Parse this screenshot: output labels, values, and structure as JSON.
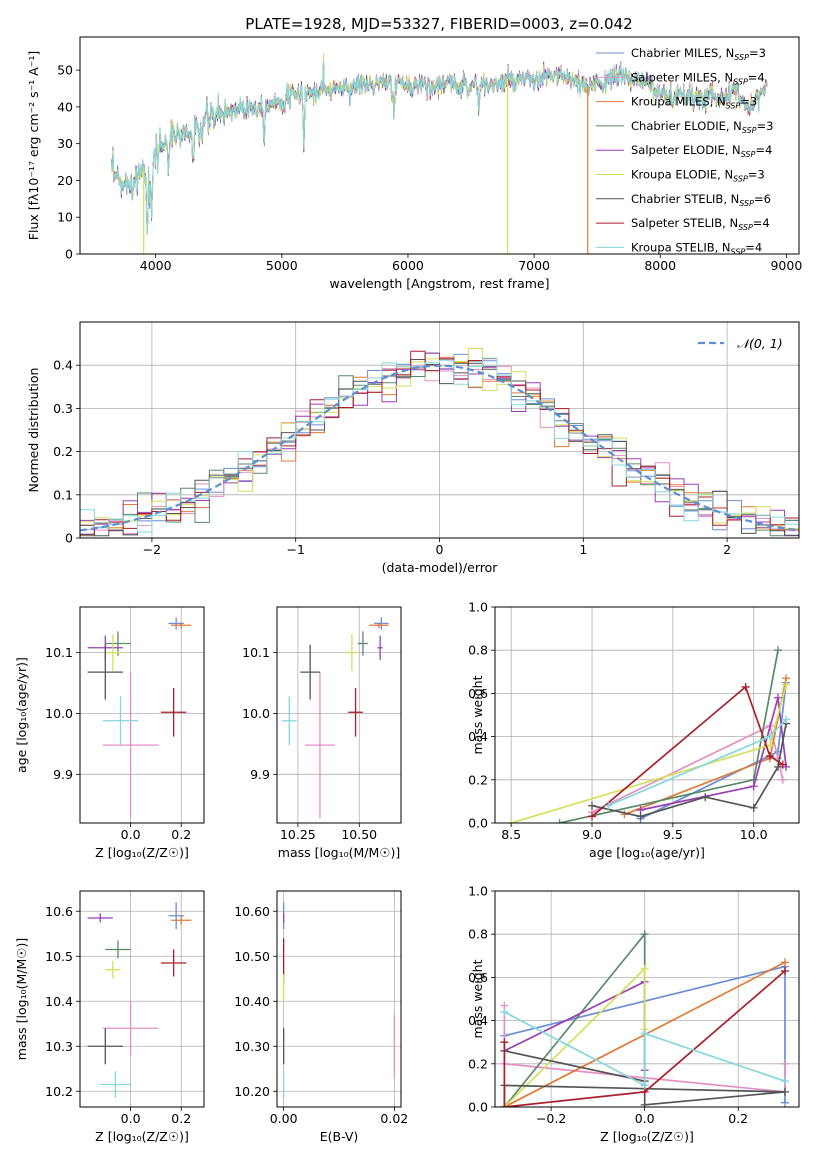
{
  "title": "PLATE=1928, MJD=53327, FIBERID=0003, z=0.042",
  "colors": {
    "chab_miles": "#6b8fd6",
    "salp_miles": "#e58fc5",
    "krou_miles": "#e07b39",
    "chab_elodie": "#5a8a6a",
    "salp_elodie": "#9b3fb5",
    "krou_elodie": "#d4e05a",
    "chab_stelib": "#555555",
    "salp_stelib": "#aa1f2a",
    "krou_stelib": "#86d7dd",
    "normal": "#5b8fd6"
  },
  "legend_top": [
    {
      "label": "Chabrier MILES, N",
      "sub": "SSP",
      "suffix": "=3",
      "color_key": "chab_miles"
    },
    {
      "label": "Salpeter MILES, N",
      "sub": "SSP",
      "suffix": "=4",
      "color_key": "salp_miles"
    },
    {
      "label": "Kroupa MILES, N",
      "sub": "SSP",
      "suffix": "=3",
      "color_key": "krou_miles"
    },
    {
      "label": "Chabrier ELODIE, N",
      "sub": "SSP",
      "suffix": "=3",
      "color_key": "chab_elodie"
    },
    {
      "label": "Salpeter ELODIE, N",
      "sub": "SSP",
      "suffix": "=4",
      "color_key": "salp_elodie"
    },
    {
      "label": "Kroupa ELODIE, N",
      "sub": "SSP",
      "suffix": "=3",
      "color_key": "krou_elodie"
    },
    {
      "label": "Chabrier STELIB, N",
      "sub": "SSP",
      "suffix": "=6",
      "color_key": "chab_stelib"
    },
    {
      "label": "Salpeter STELIB, N",
      "sub": "SSP",
      "suffix": "=4",
      "color_key": "salp_stelib"
    },
    {
      "label": "Kroupa STELIB, N",
      "sub": "SSP",
      "suffix": "=4",
      "color_key": "krou_stelib"
    }
  ],
  "legend_hist": "𝒩(0, 1)",
  "chart_data": [
    {
      "id": "spectrum",
      "type": "line",
      "title": "PLATE=1928, MJD=53327, FIBERID=0003, z=0.042",
      "xlabel": "wavelength [Angstrom, rest frame]",
      "ylabel": "Flux [fλ10⁻¹⁷ erg cm⁻² s⁻¹ A⁻¹]",
      "xlim": [
        3400,
        9100
      ],
      "ylim": [
        0,
        59
      ],
      "xticks": [
        4000,
        5000,
        6000,
        7000,
        8000,
        9000
      ],
      "yticks": [
        0,
        10,
        20,
        30,
        40,
        50
      ],
      "continuum": [
        [
          3650,
          22
        ],
        [
          3700,
          20
        ],
        [
          3750,
          18
        ],
        [
          3800,
          20
        ],
        [
          3850,
          21
        ],
        [
          3900,
          24
        ],
        [
          3950,
          20
        ],
        [
          4000,
          28
        ],
        [
          4100,
          31
        ],
        [
          4200,
          33
        ],
        [
          4300,
          32
        ],
        [
          4400,
          36
        ],
        [
          4500,
          38
        ],
        [
          4600,
          39
        ],
        [
          4700,
          40
        ],
        [
          4800,
          40
        ],
        [
          4900,
          41
        ],
        [
          5000,
          42
        ],
        [
          5100,
          43
        ],
        [
          5200,
          44
        ],
        [
          5300,
          44
        ],
        [
          5400,
          45
        ],
        [
          5500,
          45
        ],
        [
          5600,
          46
        ],
        [
          5700,
          46
        ],
        [
          5800,
          46
        ],
        [
          5900,
          46
        ],
        [
          6000,
          46
        ],
        [
          6100,
          46
        ],
        [
          6200,
          46
        ],
        [
          6300,
          46
        ],
        [
          6400,
          46
        ],
        [
          6500,
          46
        ],
        [
          6600,
          46
        ],
        [
          6700,
          46
        ],
        [
          6800,
          47
        ],
        [
          6900,
          47
        ],
        [
          7000,
          47
        ],
        [
          7100,
          48
        ],
        [
          7200,
          49
        ],
        [
          7300,
          47
        ],
        [
          7400,
          45
        ],
        [
          7500,
          47
        ],
        [
          7600,
          47
        ],
        [
          7700,
          49
        ],
        [
          7800,
          47
        ],
        [
          7900,
          46
        ],
        [
          8000,
          44
        ],
        [
          8100,
          42
        ],
        [
          8200,
          43
        ],
        [
          8300,
          42
        ],
        [
          8400,
          44
        ],
        [
          8500,
          42
        ],
        [
          8600,
          44
        ],
        [
          8700,
          40
        ],
        [
          8800,
          44
        ],
        [
          8850,
          45
        ]
      ],
      "dips": [
        [
          3933,
          6.5
        ],
        [
          3968,
          8.2
        ],
        [
          4102,
          20
        ],
        [
          4300,
          24
        ],
        [
          4861,
          29
        ],
        [
          5175,
          28
        ],
        [
          5890,
          36
        ],
        [
          6563,
          37
        ]
      ],
      "drops": [
        {
          "x": 3905,
          "color_key": "krou_elodie"
        },
        {
          "x": 6790,
          "color_key": "krou_elodie"
        },
        {
          "x": 7425,
          "color_key": "krou_miles"
        }
      ]
    },
    {
      "id": "residual_hist",
      "type": "histogram",
      "xlabel": "(data-model)/error",
      "ylabel": "Normed distribution",
      "xlim": [
        -2.5,
        2.5
      ],
      "ylim": [
        0,
        0.5
      ],
      "xticks": [
        -2,
        -1,
        0,
        1,
        2
      ],
      "yticks": [
        0.0,
        0.1,
        0.2,
        0.3,
        0.4
      ],
      "bin_width": 0.1,
      "grid": true,
      "series": [
        "chab_miles",
        "salp_miles",
        "krou_miles",
        "chab_elodie",
        "salp_elodie",
        "krou_elodie",
        "chab_stelib",
        "salp_stelib",
        "krou_stelib"
      ]
    },
    {
      "id": "age_vs_Z",
      "type": "errorbar",
      "xlabel": "Z [log₁₀(Z/Z☉)]",
      "ylabel": "age  [log₁₀(age/yr)]",
      "xlim": [
        -0.2,
        0.29
      ],
      "ylim": [
        9.82,
        10.175
      ],
      "xticks": [
        0.0,
        0.2
      ],
      "yticks": [
        9.9,
        10.0,
        10.1
      ],
      "grid": true,
      "points": [
        {
          "c": "chab_miles",
          "x": 0.18,
          "y": 10.148,
          "xe": 0.03,
          "ye": 0.01
        },
        {
          "c": "krou_miles",
          "x": 0.2,
          "y": 10.145,
          "xe": 0.04,
          "ye": 0.005
        },
        {
          "c": "salp_miles",
          "x": 0.0,
          "y": 9.948,
          "xe": 0.11,
          "ye": 0.12
        },
        {
          "c": "chab_elodie",
          "x": -0.05,
          "y": 10.115,
          "xe": 0.05,
          "ye": 0.02
        },
        {
          "c": "salp_elodie",
          "x": -0.1,
          "y": 10.108,
          "xe": 0.07,
          "ye": 0.02
        },
        {
          "c": "krou_elodie",
          "x": -0.07,
          "y": 10.1,
          "xe": 0.03,
          "ye": 0.03
        },
        {
          "c": "chab_stelib",
          "x": -0.1,
          "y": 10.068,
          "xe": 0.07,
          "ye": 0.045
        },
        {
          "c": "salp_stelib",
          "x": 0.17,
          "y": 10.002,
          "xe": 0.05,
          "ye": 0.04
        },
        {
          "c": "krou_stelib",
          "x": -0.04,
          "y": 9.988,
          "xe": 0.07,
          "ye": 0.04
        }
      ]
    },
    {
      "id": "age_vs_mass",
      "type": "errorbar",
      "xlabel": "mass [log₁₀(M/M☉)]",
      "ylabel": "",
      "xlim": [
        10.165,
        10.67
      ],
      "ylim": [
        9.82,
        10.175
      ],
      "xticks": [
        10.25,
        10.5
      ],
      "yticks": [
        9.9,
        10.0,
        10.1
      ],
      "grid": true,
      "points": [
        {
          "c": "chab_miles",
          "x": 10.59,
          "y": 10.148,
          "xe": 0.03,
          "ye": 0.01
        },
        {
          "c": "krou_miles",
          "x": 10.58,
          "y": 10.145,
          "xe": 0.04,
          "ye": 0.005
        },
        {
          "c": "salp_miles",
          "x": 10.34,
          "y": 9.948,
          "xe": 0.06,
          "ye": 0.12
        },
        {
          "c": "chab_elodie",
          "x": 10.515,
          "y": 10.115,
          "xe": 0.02,
          "ye": 0.02
        },
        {
          "c": "salp_elodie",
          "x": 10.585,
          "y": 10.108,
          "xe": 0.01,
          "ye": 0.02
        },
        {
          "c": "krou_elodie",
          "x": 10.47,
          "y": 10.1,
          "xe": 0.02,
          "ye": 0.03
        },
        {
          "c": "chab_stelib",
          "x": 10.3,
          "y": 10.068,
          "xe": 0.04,
          "ye": 0.045
        },
        {
          "c": "salp_stelib",
          "x": 10.485,
          "y": 10.002,
          "xe": 0.03,
          "ye": 0.04
        },
        {
          "c": "krou_stelib",
          "x": 10.215,
          "y": 9.988,
          "xe": 0.03,
          "ye": 0.04
        }
      ]
    },
    {
      "id": "weight_vs_age",
      "type": "line",
      "xlabel": "age  [log₁₀(age/yr)]",
      "ylabel": "mass weight",
      "xlim": [
        8.4,
        10.28
      ],
      "ylim": [
        0,
        1.0
      ],
      "xticks": [
        8.5,
        9.0,
        9.5,
        10.0
      ],
      "yticks": [
        0.0,
        0.2,
        0.4,
        0.6,
        0.8,
        1.0
      ],
      "grid": true,
      "series": [
        {
          "c": "chab_miles",
          "pts": [
            [
              9.3,
              0.02
            ],
            [
              10.15,
              0.33
            ],
            [
              10.2,
              0.65
            ]
          ]
        },
        {
          "c": "salp_miles",
          "pts": [
            [
              9.0,
              0.05
            ],
            [
              10.1,
              0.45
            ],
            [
              10.15,
              0.3
            ],
            [
              10.18,
              0.2
            ]
          ]
        },
        {
          "c": "krou_miles",
          "pts": [
            [
              9.2,
              0.04
            ],
            [
              10.1,
              0.3
            ],
            [
              10.2,
              0.67
            ]
          ]
        },
        {
          "c": "chab_elodie",
          "pts": [
            [
              8.8,
              0.0
            ],
            [
              10.0,
              0.2
            ],
            [
              10.15,
              0.8
            ]
          ]
        },
        {
          "c": "salp_elodie",
          "pts": [
            [
              9.3,
              0.06
            ],
            [
              10.0,
              0.17
            ],
            [
              10.15,
              0.58
            ],
            [
              10.2,
              0.26
            ]
          ]
        },
        {
          "c": "krou_elodie",
          "pts": [
            [
              8.5,
              0.0
            ],
            [
              10.1,
              0.36
            ],
            [
              10.2,
              0.64
            ]
          ]
        },
        {
          "c": "chab_stelib",
          "pts": [
            [
              9.0,
              0.08
            ],
            [
              9.3,
              0.03
            ],
            [
              9.7,
              0.12
            ],
            [
              10.0,
              0.07
            ],
            [
              10.15,
              0.26
            ],
            [
              10.2,
              0.46
            ]
          ]
        },
        {
          "c": "salp_stelib",
          "pts": [
            [
              9.0,
              0.03
            ],
            [
              9.95,
              0.63
            ],
            [
              10.1,
              0.31
            ],
            [
              10.18,
              0.27
            ]
          ]
        },
        {
          "c": "krou_stelib",
          "pts": [
            [
              9.1,
              0.08
            ],
            [
              10.1,
              0.4
            ],
            [
              10.2,
              0.48
            ]
          ]
        }
      ]
    },
    {
      "id": "mass_vs_Z",
      "type": "errorbar",
      "xlabel": "Z [log₁₀(Z/Z☉)]",
      "ylabel": "mass [log₁₀(M/M☉)]",
      "xlim": [
        -0.2,
        0.29
      ],
      "ylim": [
        10.165,
        10.645
      ],
      "xticks": [
        0.0,
        0.2
      ],
      "yticks": [
        10.2,
        10.3,
        10.4,
        10.5,
        10.6
      ],
      "grid": true,
      "points": [
        {
          "c": "chab_miles",
          "x": 0.18,
          "y": 10.59,
          "xe": 0.03,
          "ye": 0.03
        },
        {
          "c": "krou_miles",
          "x": 0.2,
          "y": 10.58,
          "xe": 0.04,
          "ye": 0.01
        },
        {
          "c": "salp_miles",
          "x": 0.0,
          "y": 10.34,
          "xe": 0.11,
          "ye": 0.06
        },
        {
          "c": "chab_elodie",
          "x": -0.05,
          "y": 10.515,
          "xe": 0.05,
          "ye": 0.02
        },
        {
          "c": "salp_elodie",
          "x": -0.12,
          "y": 10.585,
          "xe": 0.05,
          "ye": 0.01
        },
        {
          "c": "krou_elodie",
          "x": -0.07,
          "y": 10.47,
          "xe": 0.03,
          "ye": 0.02
        },
        {
          "c": "chab_stelib",
          "x": -0.1,
          "y": 10.3,
          "xe": 0.07,
          "ye": 0.04
        },
        {
          "c": "salp_stelib",
          "x": 0.17,
          "y": 10.485,
          "xe": 0.05,
          "ye": 0.03
        },
        {
          "c": "krou_stelib",
          "x": -0.06,
          "y": 10.215,
          "xe": 0.06,
          "ye": 0.03
        }
      ]
    },
    {
      "id": "mass_vs_ebv",
      "type": "errorbar",
      "xlabel": "E(B-V)",
      "ylabel": "",
      "xlim": [
        -0.0012,
        0.0212
      ],
      "ylim": [
        10.165,
        10.645
      ],
      "xticks": [
        0.0,
        0.02
      ],
      "yticks": [
        10.2,
        10.3,
        10.4,
        10.5,
        10.6
      ],
      "grid": true,
      "points": [
        {
          "c": "chab_miles",
          "x": 0.0,
          "y": 10.59,
          "xe": 0,
          "ye": 0.03
        },
        {
          "c": "salp_elodie",
          "x": 0.0,
          "y": 10.585,
          "xe": 0,
          "ye": 0.01
        },
        {
          "c": "salp_stelib",
          "x": 0.0,
          "y": 10.49,
          "xe": 0,
          "ye": 0.05
        },
        {
          "c": "krou_elodie",
          "x": 0.0,
          "y": 10.43,
          "xe": 0,
          "ye": 0.03
        },
        {
          "c": "chab_stelib",
          "x": 0.0,
          "y": 10.3,
          "xe": 0,
          "ye": 0.04
        },
        {
          "c": "krou_stelib",
          "x": 0.0,
          "y": 10.215,
          "xe": 0,
          "ye": 0.03
        },
        {
          "c": "salp_miles",
          "x": 0.02,
          "y": 10.3,
          "xe": 0,
          "ye": 0.07
        }
      ]
    },
    {
      "id": "weight_vs_Z",
      "type": "line",
      "xlabel": "Z [log₁₀(Z/Z☉)]",
      "ylabel": "mass weight",
      "xlim": [
        -0.32,
        0.33
      ],
      "ylim": [
        0,
        1.0
      ],
      "xticks": [
        -0.2,
        0.0,
        0.2
      ],
      "yticks": [
        0.0,
        0.2,
        0.4,
        0.6,
        0.8,
        1.0
      ],
      "grid": true,
      "series": [
        {
          "c": "chab_miles",
          "pts": [
            [
              -0.3,
              0.33
            ],
            [
              0.3,
              0.65
            ],
            [
              0.3,
              0.02
            ]
          ]
        },
        {
          "c": "salp_miles",
          "pts": [
            [
              -0.3,
              0.47
            ],
            [
              -0.3,
              0.2
            ],
            [
              0.3,
              0.07
            ],
            [
              0.3,
              0.2
            ]
          ]
        },
        {
          "c": "krou_miles",
          "pts": [
            [
              -0.3,
              0.0
            ],
            [
              0.3,
              0.67
            ]
          ]
        },
        {
          "c": "chab_elodie",
          "pts": [
            [
              -0.3,
              0.0
            ],
            [
              0.0,
              0.8
            ],
            [
              0.0,
              0.1
            ]
          ]
        },
        {
          "c": "salp_elodie",
          "pts": [
            [
              -0.3,
              0.26
            ],
            [
              0.0,
              0.58
            ],
            [
              0.0,
              0.17
            ]
          ]
        },
        {
          "c": "krou_elodie",
          "pts": [
            [
              -0.3,
              0.0
            ],
            [
              0.0,
              0.64
            ],
            [
              0.0,
              0.36
            ]
          ]
        },
        {
          "c": "chab_stelib",
          "pts": [
            [
              -0.3,
              0.26
            ],
            [
              0.0,
              0.12
            ],
            [
              0.0,
              0.01
            ],
            [
              0.3,
              0.07
            ],
            [
              -0.3,
              0.1
            ],
            [
              -0.3,
              0.0
            ]
          ]
        },
        {
          "c": "salp_stelib",
          "pts": [
            [
              -0.3,
              0.3
            ],
            [
              -0.3,
              0.0
            ],
            [
              0.0,
              0.07
            ],
            [
              0.3,
              0.63
            ]
          ]
        },
        {
          "c": "krou_stelib",
          "pts": [
            [
              -0.3,
              0.44
            ],
            [
              0.0,
              0.1
            ],
            [
              0.0,
              0.34
            ],
            [
              0.3,
              0.12
            ]
          ]
        }
      ]
    }
  ]
}
